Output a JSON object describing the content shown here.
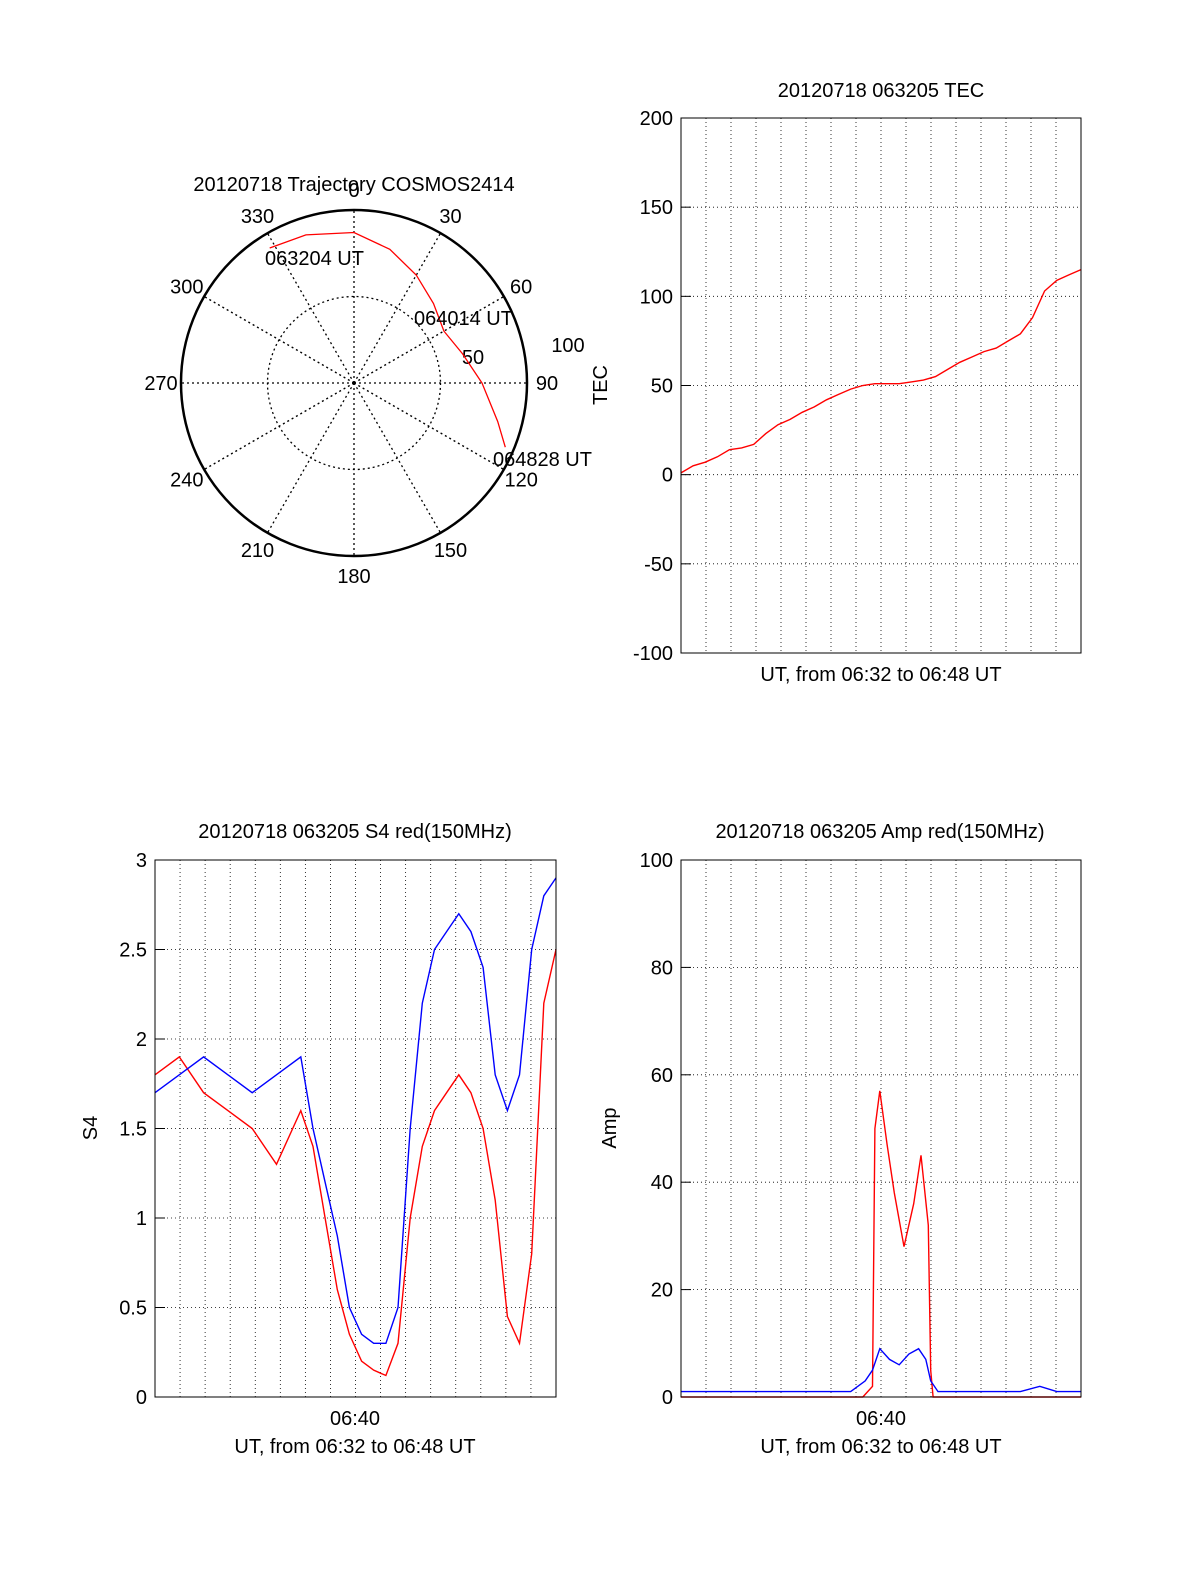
{
  "colors": {
    "red": "#ff0000",
    "blue": "#0000ff",
    "axis": "#000000"
  },
  "chart_data": [
    {
      "type": "polar",
      "title": "20120718 Trajectory COSMOS2414",
      "angle_labels": [
        {
          "deg": 0,
          "text": "0"
        },
        {
          "deg": 30,
          "text": "30"
        },
        {
          "deg": 60,
          "text": "60"
        },
        {
          "deg": 90,
          "text": "90"
        },
        {
          "deg": 120,
          "text": "120"
        },
        {
          "deg": 150,
          "text": "150"
        },
        {
          "deg": 180,
          "text": "180"
        },
        {
          "deg": 210,
          "text": "210"
        },
        {
          "deg": 240,
          "text": "240"
        },
        {
          "deg": 270,
          "text": "270"
        },
        {
          "deg": 300,
          "text": "300"
        },
        {
          "deg": 330,
          "text": "330"
        }
      ],
      "radial_labels": [
        "50",
        "100"
      ],
      "radial_max": 100,
      "trajectory": {
        "color": "red",
        "points": [
          [
            328,
            92
          ],
          [
            342,
            90
          ],
          [
            0,
            87
          ],
          [
            15,
            80
          ],
          [
            30,
            72
          ],
          [
            45,
            65
          ],
          [
            60,
            60
          ],
          [
            75,
            65
          ],
          [
            90,
            74
          ],
          [
            105,
            86
          ],
          [
            113,
            95
          ]
        ]
      },
      "annotations": [
        "063204 UT",
        "064014 UT",
        "064828 UT"
      ]
    },
    {
      "type": "line",
      "title": "20120718 063205 TEC",
      "xlabel": "UT, from 06:32 to 06:48 UT",
      "ylabel": "TEC",
      "ylim": [
        -100,
        200
      ],
      "yticks": [
        "-100",
        "-50",
        "0",
        "50",
        "100",
        "150",
        "200"
      ],
      "xlim_minutes": [
        0,
        16.5
      ],
      "grid": true,
      "series": [
        {
          "color": "red",
          "x": [
            0,
            0.5,
            1,
            1.5,
            2,
            2.5,
            3,
            3.5,
            4,
            4.5,
            5,
            5.5,
            6,
            6.5,
            7,
            7.5,
            8,
            8.5,
            9,
            9.5,
            10,
            10.5,
            11,
            11.5,
            12,
            12.5,
            13,
            13.5,
            14,
            14.5,
            15,
            15.5,
            16,
            16.5
          ],
          "y": [
            1,
            5,
            7,
            10,
            14,
            15,
            17,
            23,
            28,
            31,
            35,
            38,
            42,
            45,
            48,
            50,
            51,
            51,
            51,
            52,
            53,
            55,
            59,
            63,
            66,
            69,
            71,
            75,
            79,
            88,
            103,
            109,
            112,
            115
          ]
        }
      ]
    },
    {
      "type": "line",
      "title": "20120718 063205 S4 red(150MHz)",
      "xlabel": "UT, from 06:32 to 06:48 UT",
      "ylabel": "S4",
      "ylim": [
        0,
        3
      ],
      "yticks": [
        "0",
        "0.5",
        "1",
        "1.5",
        "2",
        "2.5",
        "3"
      ],
      "xtick_label": "06:40",
      "xlim_minutes": [
        0,
        16.5
      ],
      "grid": true,
      "series": [
        {
          "color": "red",
          "x": [
            0,
            1,
            2,
            3,
            4,
            5,
            6,
            6.5,
            7,
            7.5,
            8,
            8.5,
            9,
            9.5,
            10,
            10.5,
            11,
            11.5,
            12,
            12.5,
            13,
            13.5,
            14,
            14.5,
            15,
            15.5,
            16,
            16.5
          ],
          "y": [
            1.8,
            1.9,
            1.7,
            1.6,
            1.5,
            1.3,
            1.6,
            1.4,
            1.0,
            0.6,
            0.35,
            0.2,
            0.15,
            0.12,
            0.3,
            1.0,
            1.4,
            1.6,
            1.7,
            1.8,
            1.7,
            1.5,
            1.1,
            0.45,
            0.3,
            0.8,
            2.2,
            2.5
          ]
        },
        {
          "color": "blue",
          "x": [
            0,
            1,
            2,
            3,
            4,
            5,
            6,
            6.5,
            7,
            7.5,
            8,
            8.5,
            9,
            9.5,
            10,
            10.5,
            11,
            11.5,
            12,
            12.5,
            13,
            13.5,
            14,
            14.5,
            15,
            15.5,
            16,
            16.5
          ],
          "y": [
            1.7,
            1.8,
            1.9,
            1.8,
            1.7,
            1.8,
            1.9,
            1.5,
            1.2,
            0.9,
            0.5,
            0.35,
            0.3,
            0.3,
            0.5,
            1.5,
            2.2,
            2.5,
            2.6,
            2.7,
            2.6,
            2.4,
            1.8,
            1.6,
            1.8,
            2.5,
            2.8,
            2.9
          ]
        }
      ]
    },
    {
      "type": "line",
      "title": "20120718 063205 Amp red(150MHz)",
      "xlabel": "UT, from 06:32 to 06:48 UT",
      "ylabel": "Amp",
      "ylim": [
        0,
        100
      ],
      "yticks": [
        "0",
        "20",
        "40",
        "60",
        "80",
        "100"
      ],
      "xtick_label": "06:40",
      "xlim_minutes": [
        0,
        16.5
      ],
      "grid": true,
      "series": [
        {
          "color": "red",
          "x": [
            0,
            7.5,
            7.9,
            8.0,
            8.2,
            8.5,
            8.8,
            9.2,
            9.6,
            9.9,
            10.2,
            10.3,
            10.4,
            16.5
          ],
          "y": [
            0,
            0,
            2,
            50,
            57,
            47,
            38,
            28,
            36,
            45,
            32,
            5,
            0,
            0
          ]
        },
        {
          "color": "blue",
          "x": [
            0,
            2,
            4,
            6,
            7.0,
            7.6,
            7.9,
            8.2,
            8.6,
            9.0,
            9.4,
            9.8,
            10.1,
            10.3,
            10.6,
            12,
            14,
            14.8,
            15.5,
            16.5
          ],
          "y": [
            1,
            1,
            1,
            1,
            1,
            3,
            5,
            9,
            7,
            6,
            8,
            9,
            7,
            3,
            1,
            1,
            1,
            2,
            1,
            1
          ]
        }
      ]
    }
  ]
}
